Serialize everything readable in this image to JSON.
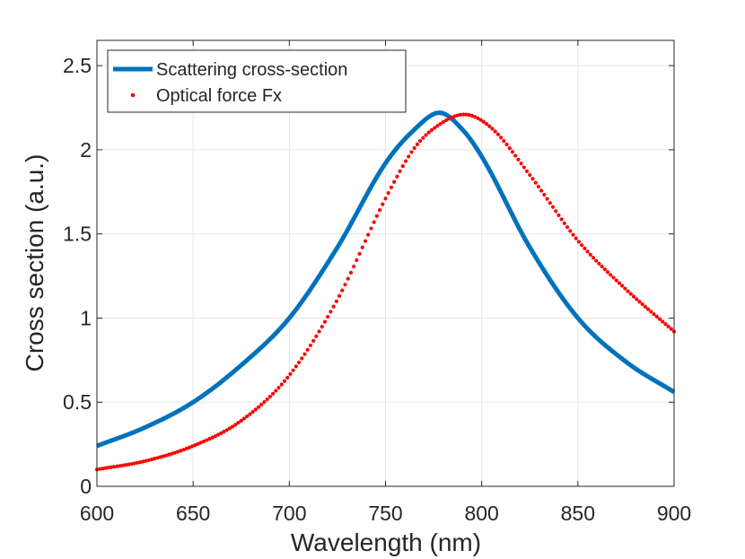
{
  "chart_data": {
    "type": "line",
    "xlabel": "Wavelength (nm)",
    "ylabel": "Cross section (a.u.)",
    "xlim": [
      600,
      900
    ],
    "ylim": [
      0,
      2.65
    ],
    "grid": true,
    "legend_position": "top-left",
    "x_ticks": [
      600,
      650,
      700,
      750,
      800,
      850,
      900
    ],
    "x_tick_labels": [
      "600",
      "650",
      "700",
      "750",
      "800",
      "850",
      "900"
    ],
    "y_ticks": [
      0,
      0.5,
      1,
      1.5,
      2,
      2.5
    ],
    "y_tick_labels": [
      "0",
      "0.5",
      "1",
      "1.5",
      "2",
      "2.5"
    ],
    "series": [
      {
        "name": "Scattering cross-section",
        "style": "line",
        "color": "#0072BD",
        "x": [
          600,
          625,
          650,
          675,
          700,
          725,
          750,
          765,
          778,
          790,
          800,
          825,
          850,
          875,
          900
        ],
        "y": [
          0.24,
          0.35,
          0.5,
          0.72,
          1.0,
          1.42,
          1.92,
          2.12,
          2.22,
          2.12,
          1.96,
          1.42,
          1.0,
          0.74,
          0.56
        ]
      },
      {
        "name": "Optical force Fx",
        "style": "dots",
        "color": "#FF0000",
        "x": [
          600,
          625,
          650,
          675,
          700,
          725,
          750,
          765,
          778,
          791,
          805,
          825,
          850,
          875,
          900
        ],
        "y": [
          0.1,
          0.15,
          0.24,
          0.39,
          0.66,
          1.11,
          1.71,
          2.01,
          2.15,
          2.21,
          2.13,
          1.85,
          1.46,
          1.17,
          0.92
        ]
      }
    ]
  }
}
